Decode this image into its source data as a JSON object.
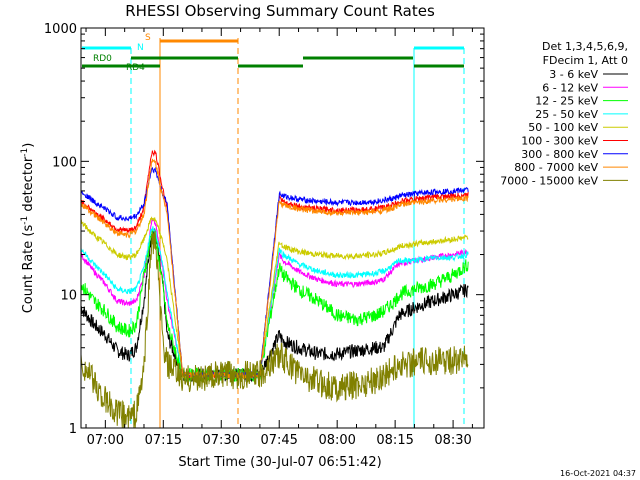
{
  "chart_data": {
    "type": "line",
    "title": "RHESSI Observing Summary Count Rates",
    "xlabel": "Start Time (30-Jul-07 06:51:42)",
    "ylabel": "Count Rate (s",
    "ylabel_sup1": "-1",
    "ylabel_mid": " detector",
    "ylabel_sup2": "-1",
    "ylabel_end": ")",
    "y_scale": "log",
    "ylim": [
      1,
      1000
    ],
    "xlim_minutes": [
      -6.3,
      98
    ],
    "x_tick_labels": [
      "07:00",
      "07:15",
      "07:30",
      "07:45",
      "08:00",
      "08:15",
      "08:30"
    ],
    "x_tick_minutes": [
      0,
      15,
      30,
      45,
      60,
      75,
      90
    ],
    "y_tick_labels": [
      "1",
      "10",
      "100",
      "1000"
    ],
    "y_tick_values": [
      1,
      10,
      100,
      1000
    ],
    "legend_header": [
      "Det 1,3,4,5,6,9,",
      "FDecim 1, Att 0"
    ],
    "legend_position": "right",
    "timestamp": "16-Oct-2021 04:37",
    "flags": {
      "saa_label": "S",
      "night_label": "N",
      "rd0_label": "RD0",
      "rd4_label": "RD4"
    },
    "series": [
      {
        "name": "3 - 6 keV",
        "color": "#000000",
        "x": [
          -6.3,
          -3,
          0,
          3,
          6,
          8,
          10,
          12,
          13,
          15,
          16,
          20,
          30,
          40,
          45,
          46,
          50,
          55,
          60,
          65,
          70,
          72,
          75,
          76,
          80,
          85,
          90,
          94
        ],
        "y": [
          8,
          6,
          5,
          3.8,
          3.5,
          4,
          9,
          30,
          28,
          11,
          5,
          2.5,
          2.5,
          2.5,
          5,
          4.5,
          4,
          3.6,
          3.6,
          3.8,
          4,
          4,
          6,
          7,
          8,
          9,
          10,
          11
        ]
      },
      {
        "name": "6 - 12 keV",
        "color": "#ff00ff",
        "x": [
          -6.3,
          -3,
          0,
          3,
          6,
          8,
          10,
          12,
          13,
          15,
          16,
          20,
          30,
          40,
          45,
          46,
          50,
          55,
          60,
          65,
          70,
          72,
          75,
          76,
          80,
          85,
          90,
          94
        ],
        "y": [
          20,
          15,
          12,
          9,
          8.5,
          9,
          14,
          36,
          34,
          15,
          9,
          2.5,
          2.5,
          2.5,
          20,
          18,
          15,
          13,
          12,
          12,
          12.5,
          13,
          16,
          17,
          18,
          19,
          20,
          21
        ]
      },
      {
        "name": "12 - 25 keV",
        "color": "#00ff00",
        "x": [
          -6.3,
          -3,
          0,
          3,
          6,
          8,
          10,
          12,
          13,
          15,
          16,
          20,
          30,
          40,
          45,
          46,
          50,
          55,
          60,
          65,
          70,
          72,
          75,
          76,
          80,
          85,
          90,
          94
        ],
        "y": [
          12,
          9,
          7.5,
          5.8,
          5.3,
          6,
          14,
          29,
          27,
          11,
          6,
          2.5,
          2.5,
          2.5,
          16,
          14,
          11,
          9,
          7,
          6.5,
          7,
          7.5,
          9,
          10,
          11,
          12,
          14,
          17
        ]
      },
      {
        "name": "25 - 50 keV",
        "color": "#00ffff",
        "x": [
          -6.3,
          -3,
          0,
          3,
          6,
          8,
          10,
          12,
          13,
          15,
          16,
          20,
          30,
          40,
          45,
          46,
          50,
          55,
          60,
          65,
          70,
          72,
          75,
          76,
          80,
          85,
          90,
          94
        ],
        "y": [
          22,
          17,
          14,
          11,
          10.5,
          11,
          16,
          32,
          30,
          16,
          10,
          2.5,
          2.5,
          2.5,
          22,
          20,
          17,
          15,
          14,
          14,
          14.5,
          15,
          17,
          18,
          18,
          19,
          19,
          20
        ]
      },
      {
        "name": "50 - 100 keV",
        "color": "#cccc00",
        "x": [
          -6.3,
          -3,
          0,
          3,
          6,
          8,
          10,
          12,
          13,
          15,
          16,
          20,
          30,
          40,
          45,
          46,
          50,
          55,
          60,
          65,
          70,
          72,
          75,
          76,
          80,
          85,
          90,
          94
        ],
        "y": [
          35,
          28,
          24,
          20,
          19,
          20,
          26,
          38,
          36,
          24,
          18,
          2.5,
          2.5,
          2.5,
          25,
          23,
          21,
          20,
          19.5,
          19.5,
          20,
          20.5,
          22,
          23,
          24,
          25,
          26,
          27
        ]
      },
      {
        "name": "100 - 300 keV",
        "color": "#ff0000",
        "x": [
          -6.3,
          -3,
          0,
          3,
          6,
          8,
          10,
          12,
          13,
          15,
          16,
          20,
          30,
          40,
          45,
          46,
          50,
          55,
          60,
          65,
          70,
          72,
          75,
          76,
          80,
          85,
          90,
          94
        ],
        "y": [
          50,
          42,
          36,
          31,
          30,
          32,
          45,
          118,
          115,
          60,
          45,
          2.5,
          2.5,
          2.5,
          54,
          50,
          46,
          44,
          43,
          43,
          44,
          45,
          48,
          50,
          52,
          54,
          55,
          56
        ]
      },
      {
        "name": "300 - 800 keV",
        "color": "#0000ff",
        "x": [
          -6.3,
          -3,
          0,
          3,
          6,
          8,
          10,
          12,
          13,
          15,
          16,
          20,
          30,
          40,
          45,
          46,
          50,
          55,
          60,
          65,
          70,
          72,
          75,
          76,
          80,
          85,
          90,
          94
        ],
        "y": [
          60,
          50,
          44,
          38,
          37,
          39,
          48,
          88,
          85,
          55,
          48,
          2.5,
          2.5,
          2.5,
          57,
          55,
          52,
          50,
          49,
          49,
          50,
          51,
          53,
          55,
          57,
          59,
          60,
          61
        ]
      },
      {
        "name": "800 - 7000 keV",
        "color": "#ff8800",
        "x": [
          -6.3,
          -3,
          0,
          3,
          6,
          8,
          10,
          12,
          13,
          15,
          16,
          20,
          30,
          40,
          45,
          46,
          50,
          55,
          60,
          65,
          70,
          72,
          75,
          76,
          80,
          85,
          90,
          94
        ],
        "y": [
          48,
          40,
          34,
          29,
          28,
          30,
          40,
          100,
          98,
          52,
          42,
          2.5,
          2.5,
          2.5,
          50,
          47,
          44,
          42,
          41,
          41,
          42,
          43,
          45,
          47,
          49,
          51,
          52,
          53
        ]
      },
      {
        "name": "7000 - 15000 keV",
        "color": "#808000",
        "x": [
          -6.3,
          -3,
          0,
          3,
          6,
          8,
          10,
          12,
          13,
          15,
          16,
          20,
          30,
          40,
          45,
          46,
          50,
          55,
          60,
          65,
          70,
          72,
          75,
          76,
          80,
          85,
          90,
          94
        ],
        "y": [
          3.2,
          2.2,
          1.6,
          1.3,
          1.2,
          1.3,
          2.8,
          26,
          24,
          4,
          3,
          2.3,
          2.5,
          2.5,
          3.6,
          3.3,
          2.6,
          2.2,
          2,
          2.1,
          2.3,
          2.5,
          2.8,
          3,
          3.1,
          3.2,
          3.2,
          3.3
        ]
      }
    ]
  }
}
